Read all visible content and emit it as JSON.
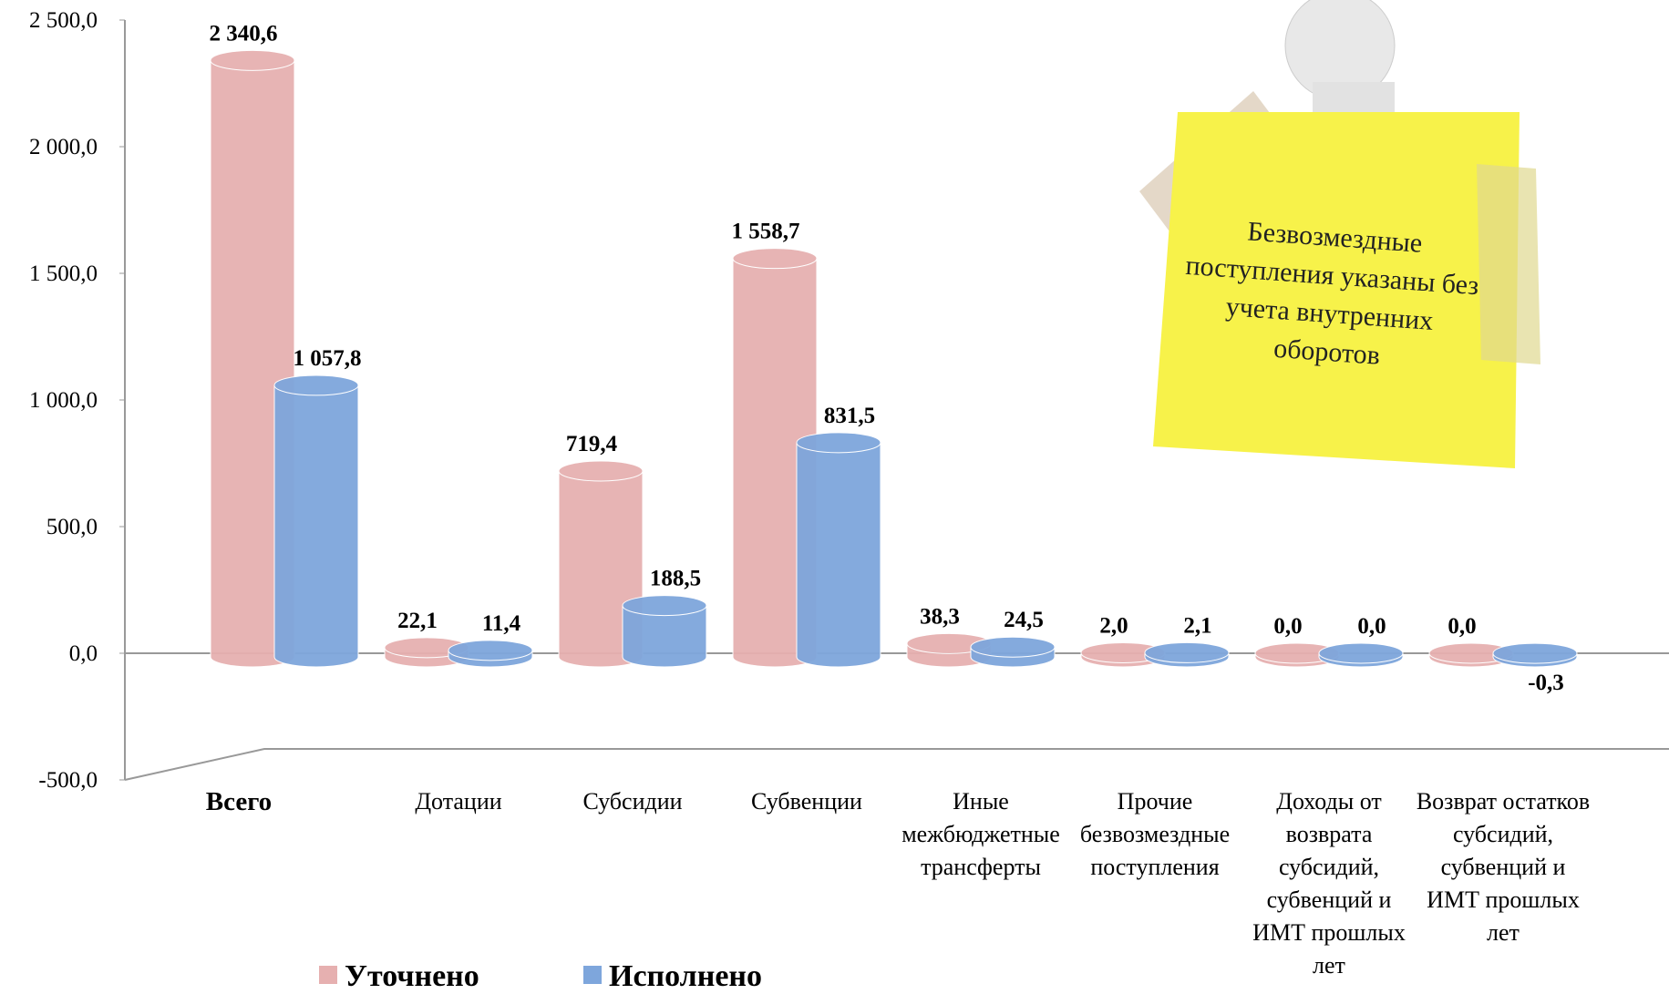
{
  "chart_data": {
    "type": "bar",
    "categories": [
      "Всего",
      "Дотации",
      "Субсидии",
      "Субвенции",
      "Иные межбюджетные трансферты",
      "Прочие безвозмездные поступления",
      "Доходы от возврата субсидий, субвенций и ИМТ прошлых лет",
      "Возврат остатков субсидий, субвенций и ИМТ прошлых лет"
    ],
    "series": [
      {
        "name": "Уточнено",
        "color": "#e6b0b0",
        "values": [
          2340.6,
          22.1,
          719.4,
          1558.7,
          38.3,
          2.0,
          0.0,
          0.0
        ],
        "value_labels": [
          "2 340,6",
          "22,1",
          "719,4",
          "1 558,7",
          "38,3",
          "2,0",
          "0,0",
          "0,0"
        ]
      },
      {
        "name": "Исполнено",
        "color": "#7ea6dc",
        "values": [
          1057.8,
          11.4,
          188.5,
          831.5,
          24.5,
          2.1,
          0.0,
          -0.3
        ],
        "value_labels": [
          "1 057,8",
          "11,4",
          "188,5",
          "831,5",
          "24,5",
          "2,1",
          "0,0",
          "-0,3"
        ]
      }
    ],
    "ylim": [
      -500,
      2500
    ],
    "yticks": [
      {
        "value": -500,
        "label": "-500,0"
      },
      {
        "value": 0,
        "label": "0,0"
      },
      {
        "value": 500,
        "label": "500,0"
      },
      {
        "value": 1000,
        "label": "1 000,0"
      },
      {
        "value": 1500,
        "label": "1 500,0"
      },
      {
        "value": 2000,
        "label": "2 000,0"
      },
      {
        "value": 2500,
        "label": "2 500,0"
      }
    ],
    "annotation": "Безвозмездные поступления указаны без учета внутренних оборотов"
  }
}
